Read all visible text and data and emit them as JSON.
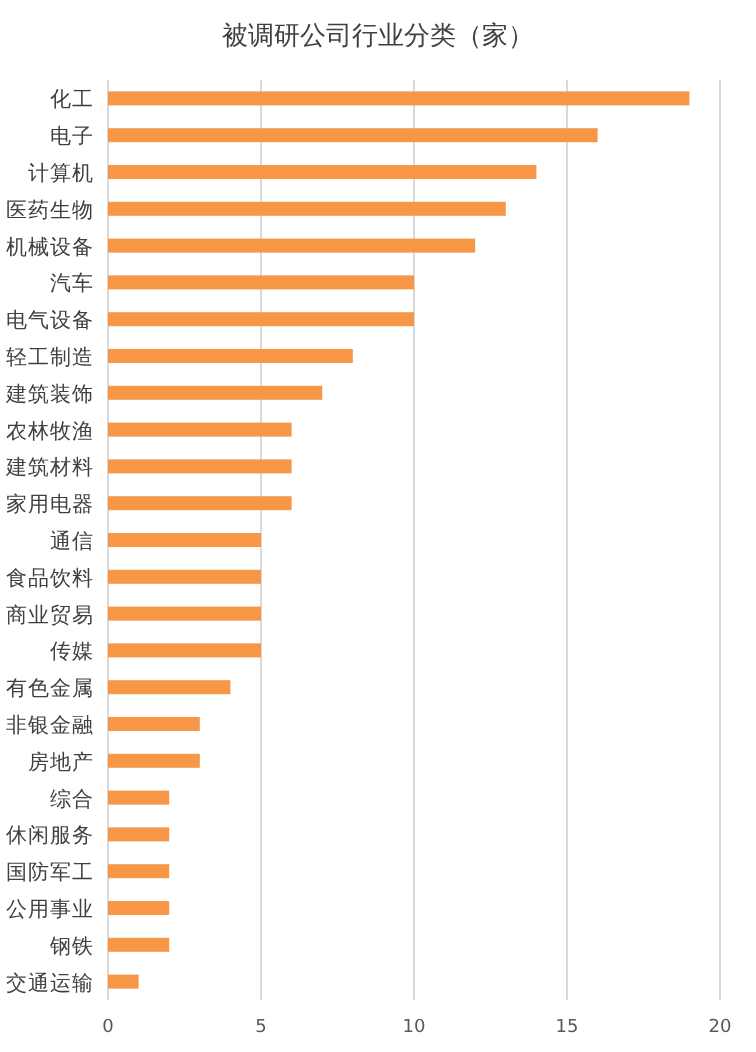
{
  "chart_data": {
    "type": "bar",
    "orientation": "horizontal",
    "title": "被调研公司行业分类（家）",
    "categories": [
      "化工",
      "电子",
      "计算机",
      "医药生物",
      "机械设备",
      "汽车",
      "电气设备",
      "轻工制造",
      "建筑装饰",
      "农林牧渔",
      "建筑材料",
      "家用电器",
      "通信",
      "食品饮料",
      "商业贸易",
      "传媒",
      "有色金属",
      "非银金融",
      "房地产",
      "综合",
      "休闲服务",
      "国防军工",
      "公用事业",
      "钢铁",
      "交通运输"
    ],
    "values": [
      19,
      16,
      14,
      13,
      12,
      10,
      10,
      8,
      7,
      6,
      6,
      6,
      5,
      5,
      5,
      5,
      4,
      3,
      3,
      2,
      2,
      2,
      2,
      2,
      1
    ],
    "color": "#f79646",
    "xlim": [
      0,
      20
    ],
    "xticks": [
      0,
      5,
      10,
      15,
      20
    ],
    "grid": "x"
  }
}
